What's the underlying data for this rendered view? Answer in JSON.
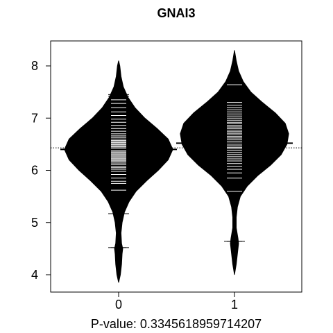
{
  "chart_data": {
    "type": "beanplot",
    "title": "GNAI3",
    "xlabel": "P-value: 0.3345618959714207",
    "ylabel": "",
    "categories": [
      "0",
      "1"
    ],
    "y_ticks": [
      4,
      5,
      6,
      7,
      8
    ],
    "ylim": [
      3.7,
      8.5
    ],
    "overall_mean": 6.43,
    "series": [
      {
        "category": "0",
        "mean": 6.4,
        "range": [
          3.85,
          8.1
        ],
        "density": [
          [
            3.85,
            0.0
          ],
          [
            4.0,
            0.03
          ],
          [
            4.2,
            0.05
          ],
          [
            4.4,
            0.06
          ],
          [
            4.5,
            0.07
          ],
          [
            4.6,
            0.05
          ],
          [
            4.8,
            0.04
          ],
          [
            5.0,
            0.06
          ],
          [
            5.2,
            0.1
          ],
          [
            5.4,
            0.18
          ],
          [
            5.6,
            0.3
          ],
          [
            5.8,
            0.48
          ],
          [
            6.0,
            0.68
          ],
          [
            6.2,
            0.85
          ],
          [
            6.4,
            0.93
          ],
          [
            6.6,
            0.85
          ],
          [
            6.8,
            0.66
          ],
          [
            7.0,
            0.45
          ],
          [
            7.2,
            0.28
          ],
          [
            7.4,
            0.16
          ],
          [
            7.6,
            0.08
          ],
          [
            7.8,
            0.04
          ],
          [
            8.0,
            0.02
          ],
          [
            8.1,
            0.0
          ]
        ],
        "observations": [
          4.52,
          5.17,
          5.62,
          5.75,
          5.79,
          5.85,
          5.92,
          5.98,
          6.02,
          6.05,
          6.08,
          6.11,
          6.14,
          6.17,
          6.19,
          6.21,
          6.23,
          6.25,
          6.27,
          6.29,
          6.31,
          6.33,
          6.35,
          6.37,
          6.39,
          6.41,
          6.43,
          6.45,
          6.47,
          6.49,
          6.51,
          6.53,
          6.55,
          6.57,
          6.6,
          6.63,
          6.66,
          6.7,
          6.75,
          6.8,
          6.86,
          6.92,
          6.98,
          7.05,
          7.12,
          7.2,
          7.28,
          7.35,
          7.42,
          7.45
        ]
      },
      {
        "category": "1",
        "mean": 6.52,
        "range": [
          4.0,
          8.3
        ],
        "density": [
          [
            4.0,
            0.0
          ],
          [
            4.2,
            0.03
          ],
          [
            4.4,
            0.05
          ],
          [
            4.6,
            0.07
          ],
          [
            4.7,
            0.06
          ],
          [
            4.9,
            0.03
          ],
          [
            5.1,
            0.03
          ],
          [
            5.3,
            0.05
          ],
          [
            5.5,
            0.1
          ],
          [
            5.7,
            0.22
          ],
          [
            5.9,
            0.4
          ],
          [
            6.1,
            0.62
          ],
          [
            6.3,
            0.8
          ],
          [
            6.5,
            0.9
          ],
          [
            6.7,
            0.93
          ],
          [
            6.9,
            0.87
          ],
          [
            7.1,
            0.7
          ],
          [
            7.3,
            0.48
          ],
          [
            7.5,
            0.28
          ],
          [
            7.7,
            0.15
          ],
          [
            7.9,
            0.07
          ],
          [
            8.1,
            0.03
          ],
          [
            8.3,
            0.0
          ]
        ],
        "observations": [
          4.64,
          5.6,
          5.85,
          5.95,
          6.02,
          6.08,
          6.13,
          6.18,
          6.22,
          6.26,
          6.3,
          6.34,
          6.38,
          6.41,
          6.44,
          6.47,
          6.5,
          6.53,
          6.56,
          6.59,
          6.62,
          6.65,
          6.68,
          6.71,
          6.74,
          6.77,
          6.8,
          6.83,
          6.86,
          6.89,
          6.92,
          6.96,
          7.0,
          7.04,
          7.08,
          7.12,
          7.16,
          7.2,
          7.25,
          7.3,
          7.64
        ]
      }
    ],
    "grid": false,
    "legend": "none"
  }
}
